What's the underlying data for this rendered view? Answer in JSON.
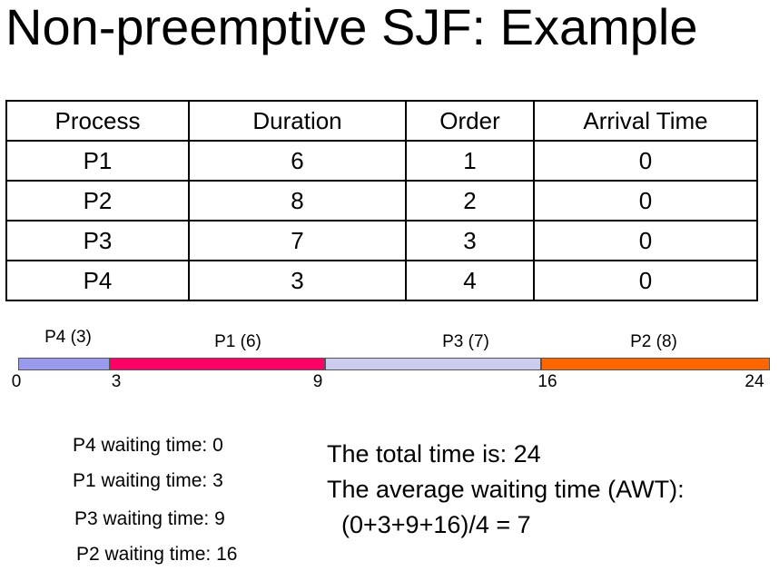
{
  "title": "Non-preemptive SJF: Example",
  "table": {
    "headers": [
      "Process",
      "Duration",
      "Order",
      "Arrival Time"
    ],
    "rows": [
      [
        "P1",
        "6",
        "1",
        "0"
      ],
      [
        "P2",
        "8",
        "2",
        "0"
      ],
      [
        "P3",
        "7",
        "3",
        "0"
      ],
      [
        "P4",
        "3",
        "4",
        "0"
      ]
    ]
  },
  "gantt": {
    "segments": [
      {
        "label": "P4 (3)",
        "start": 0,
        "end": 3,
        "color": "#9999ee"
      },
      {
        "label": "P1 (6)",
        "start": 3,
        "end": 9,
        "color": "#ff0066"
      },
      {
        "label": "P3 (7)",
        "start": 9,
        "end": 16,
        "color": "#ccccee"
      },
      {
        "label": "P2 (8)",
        "start": 16,
        "end": 24,
        "color": "#ff6600"
      }
    ],
    "ticks": [
      "0",
      "3",
      "9",
      "16",
      "24"
    ]
  },
  "waiting_times": [
    "P4 waiting time: 0",
    "P1 waiting time: 3",
    "P3 waiting time: 9",
    "P2 waiting time: 16"
  ],
  "summary": {
    "total": "The total time is: 24",
    "awt_label": "The average waiting time (AWT):",
    "awt_formula": "(0+3+9+16)/4 = 7"
  }
}
